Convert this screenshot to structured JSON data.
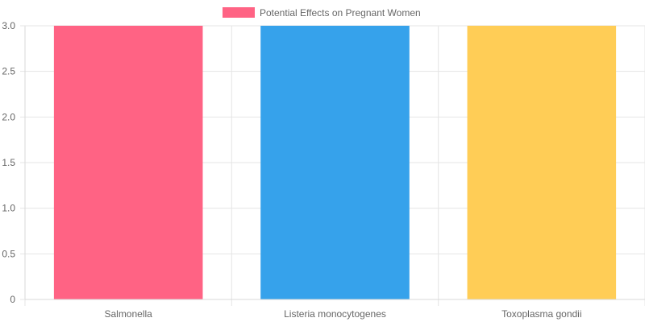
{
  "chart_data": {
    "type": "bar",
    "categories": [
      "Salmonella",
      "Listeria monocytogenes",
      "Toxoplasma gondii"
    ],
    "series": [
      {
        "name": "Potential Effects on Pregnant Women",
        "values": [
          3,
          3,
          3
        ],
        "colors": [
          "#ff6384",
          "#36a2eb",
          "#ffcd56"
        ]
      }
    ],
    "legend": {
      "position": "top",
      "color": "#ff6384"
    },
    "yticks": [
      "0",
      "0.5",
      "1.0",
      "1.5",
      "2.0",
      "2.5",
      "3.0"
    ],
    "ylim": [
      0,
      3
    ],
    "grid": true
  }
}
